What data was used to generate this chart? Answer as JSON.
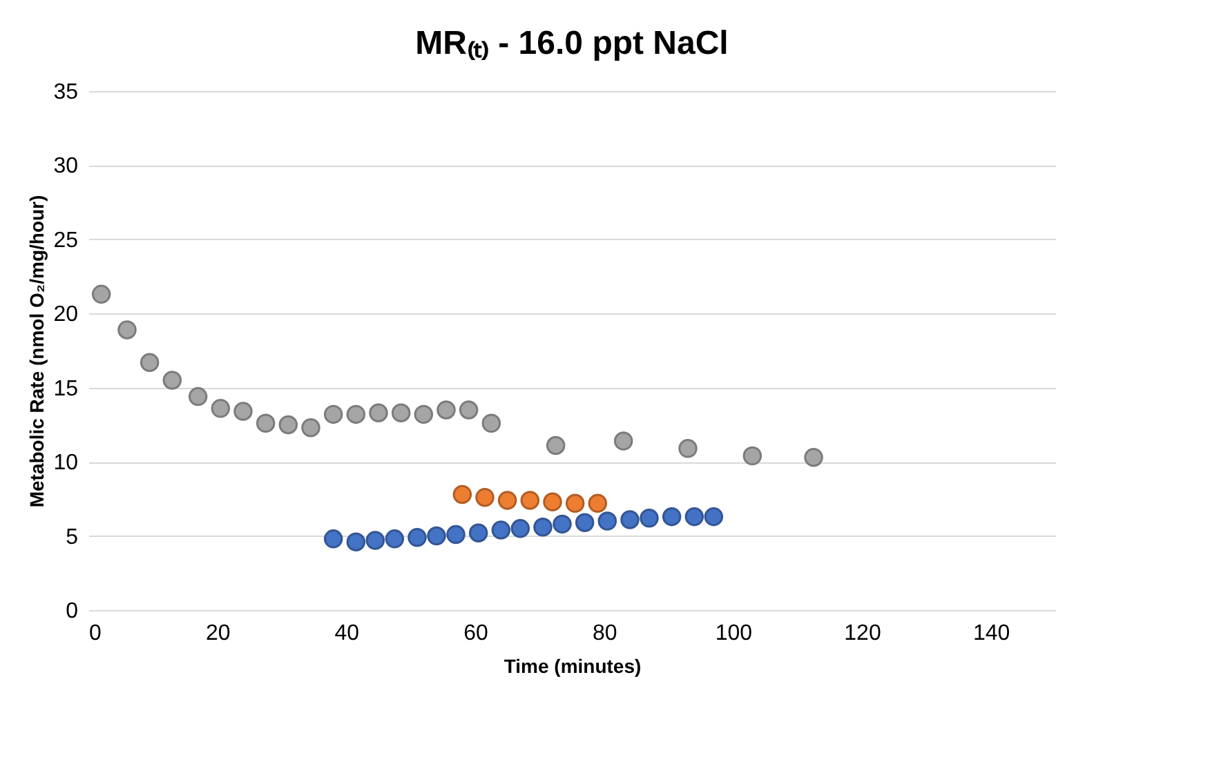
{
  "chart_data": {
    "type": "scatter",
    "title": "MR₍ₜ₎ - 16.0 ppt NaCl",
    "xlabel": "Time (minutes)",
    "ylabel": "Metabolic Rate (nmol O₂/mg/hour)",
    "xlim": [
      0,
      150
    ],
    "xticks": [
      0,
      20,
      40,
      60,
      80,
      100,
      120,
      140
    ],
    "ylim": [
      0,
      35
    ],
    "yticks": [
      0,
      5,
      10,
      15,
      20,
      25,
      30,
      35
    ],
    "grid": "y",
    "marker": "circle",
    "legend": false,
    "series": [
      {
        "color": "#a5a5a5",
        "x": [
          2,
          6,
          9.5,
          13,
          17,
          20.5,
          24,
          27.5,
          31,
          34.5,
          38,
          41.5,
          45,
          48.5,
          52,
          55.5,
          59,
          62.5,
          72.5,
          83,
          93,
          103,
          112.5
        ],
        "values": [
          21.3,
          18.9,
          16.7,
          15.5,
          14.4,
          13.6,
          13.4,
          12.6,
          12.5,
          12.3,
          13.2,
          13.2,
          13.3,
          13.3,
          13.2,
          13.5,
          13.5,
          12.6,
          11.1,
          11.4,
          10.9,
          10.4,
          10.3
        ]
      },
      {
        "color": "#ed7d31",
        "x": [
          58,
          61.5,
          65,
          68.5,
          72,
          75.5,
          79
        ],
        "values": [
          7.8,
          7.6,
          7.4,
          7.4,
          7.3,
          7.2,
          7.2
        ]
      },
      {
        "color": "#4472c4",
        "x": [
          38,
          41.5,
          44.5,
          47.5,
          51,
          54,
          57,
          60.5,
          64,
          67,
          70.5,
          73.5,
          77,
          80.5,
          84,
          87,
          90.5,
          94,
          97
        ],
        "values": [
          4.8,
          4.6,
          4.7,
          4.8,
          4.9,
          5.0,
          5.1,
          5.2,
          5.4,
          5.5,
          5.6,
          5.8,
          5.9,
          6.0,
          6.1,
          6.2,
          6.3,
          6.3,
          6.3
        ]
      }
    ]
  }
}
